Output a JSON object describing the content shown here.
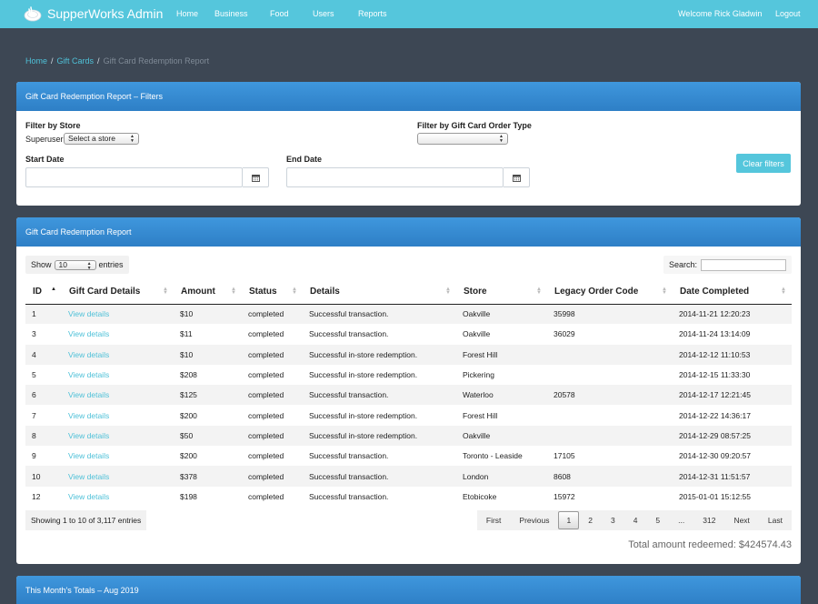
{
  "app": {
    "brand": "SupperWorks Admin"
  },
  "nav": {
    "items": [
      "Home",
      "Business",
      "Food",
      "Users",
      "Reports"
    ],
    "welcome": "Welcome Rick Gladwin",
    "logout": "Logout"
  },
  "breadcrumb": {
    "home": "Home",
    "gift_cards": "Gift Cards",
    "current": "Gift Card Redemption Report"
  },
  "filters": {
    "title": "Gift Card Redemption Report – Filters",
    "store_label": "Filter by Store",
    "store_prefix": "Superuser",
    "store_select": "Select a store",
    "order_type_label": "Filter by Gift Card Order Type",
    "order_type_select": "",
    "start_date_label": "Start Date",
    "end_date_label": "End Date",
    "clear_button": "Clear filters"
  },
  "report": {
    "title": "Gift Card Redemption Report",
    "show_label": "Show",
    "show_value": "10",
    "entries_label": "entries",
    "search_label": "Search:",
    "columns": [
      "ID",
      "Gift Card Details",
      "Amount",
      "Status",
      "Details",
      "Store",
      "Legacy Order Code",
      "Date Completed"
    ],
    "rows": [
      {
        "id": "1",
        "details_link": "View details",
        "amount": "$10",
        "status": "completed",
        "details": "Successful transaction.",
        "store": "Oakville",
        "legacy": "35998",
        "date": "2014-11-21 12:20:23"
      },
      {
        "id": "3",
        "details_link": "View details",
        "amount": "$11",
        "status": "completed",
        "details": "Successful transaction.",
        "store": "Oakville",
        "legacy": "36029",
        "date": "2014-11-24 13:14:09"
      },
      {
        "id": "4",
        "details_link": "View details",
        "amount": "$10",
        "status": "completed",
        "details": "Successful in-store redemption.",
        "store": "Forest Hill",
        "legacy": "",
        "date": "2014-12-12 11:10:53"
      },
      {
        "id": "5",
        "details_link": "View details",
        "amount": "$208",
        "status": "completed",
        "details": "Successful in-store redemption.",
        "store": "Pickering",
        "legacy": "",
        "date": "2014-12-15 11:33:30"
      },
      {
        "id": "6",
        "details_link": "View details",
        "amount": "$125",
        "status": "completed",
        "details": "Successful transaction.",
        "store": "Waterloo",
        "legacy": "20578",
        "date": "2014-12-17 12:21:45"
      },
      {
        "id": "7",
        "details_link": "View details",
        "amount": "$200",
        "status": "completed",
        "details": "Successful in-store redemption.",
        "store": "Forest Hill",
        "legacy": "",
        "date": "2014-12-22 14:36:17"
      },
      {
        "id": "8",
        "details_link": "View details",
        "amount": "$50",
        "status": "completed",
        "details": "Successful in-store redemption.",
        "store": "Oakville",
        "legacy": "",
        "date": "2014-12-29 08:57:25"
      },
      {
        "id": "9",
        "details_link": "View details",
        "amount": "$200",
        "status": "completed",
        "details": "Successful transaction.",
        "store": "Toronto - Leaside",
        "legacy": "17105",
        "date": "2014-12-30 09:20:57"
      },
      {
        "id": "10",
        "details_link": "View details",
        "amount": "$378",
        "status": "completed",
        "details": "Successful transaction.",
        "store": "London",
        "legacy": "8608",
        "date": "2014-12-31 11:51:57"
      },
      {
        "id": "12",
        "details_link": "View details",
        "amount": "$198",
        "status": "completed",
        "details": "Successful transaction.",
        "store": "Etobicoke",
        "legacy": "15972",
        "date": "2015-01-01 15:12:55"
      }
    ],
    "info": "Showing 1 to 10 of 3,117 entries",
    "pagination": [
      "First",
      "Previous",
      "1",
      "2",
      "3",
      "4",
      "5",
      "...",
      "312",
      "Next",
      "Last"
    ],
    "pagination_active": "1",
    "total": "Total amount redeemed: $424574.43"
  },
  "totals": {
    "title": "This Month's Totals – Aug 2019"
  },
  "colors": {
    "nav": "#55c6dc",
    "background": "#3d4754",
    "panel_header": "#3589d2",
    "link": "#4fc1d8"
  },
  "icons": {
    "logo": "dinner-plate-icon",
    "calendar": "calendar-icon",
    "sort": "sort-arrows-icon"
  }
}
